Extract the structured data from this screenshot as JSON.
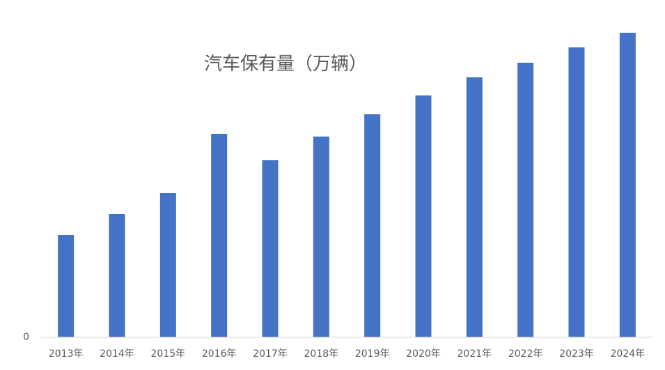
{
  "chart_data": {
    "type": "bar",
    "title": "汽车保有量（万辆）",
    "categories": [
      "2013年",
      "2014年",
      "2015年",
      "2016年",
      "2017年",
      "2018年",
      "2019年",
      "2020年",
      "2021年",
      "2022年",
      "2023年",
      "2024年"
    ],
    "values": [
      147,
      177,
      207,
      292,
      254,
      288,
      320,
      347,
      373,
      394,
      416,
      437
    ],
    "color": "#4472c4",
    "ylim": [
      0,
      450
    ],
    "yticks": [
      0
    ],
    "grid": false
  }
}
